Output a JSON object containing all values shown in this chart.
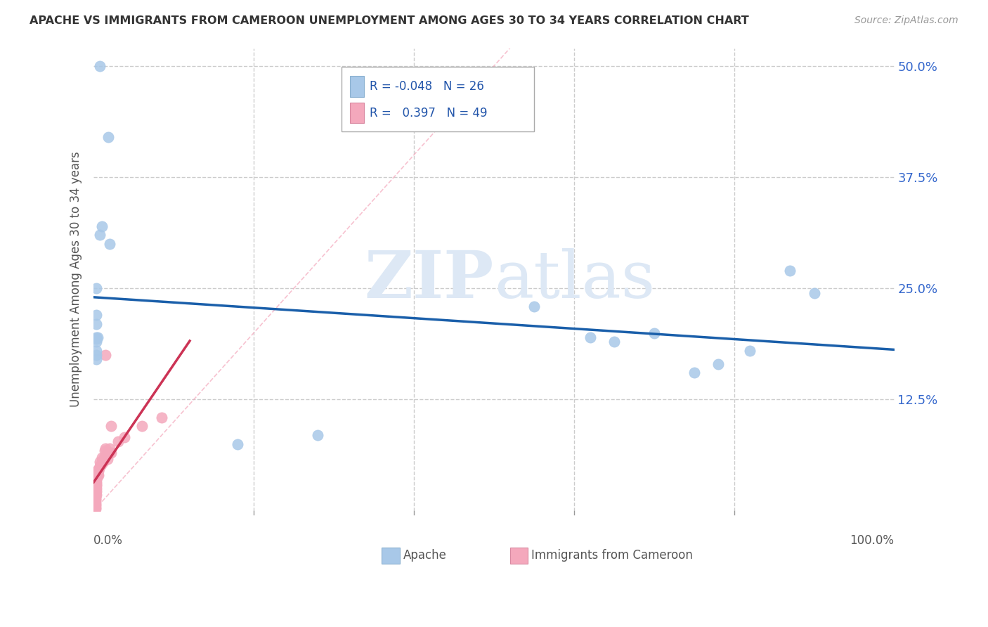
{
  "title": "APACHE VS IMMIGRANTS FROM CAMEROON UNEMPLOYMENT AMONG AGES 30 TO 34 YEARS CORRELATION CHART",
  "source": "Source: ZipAtlas.com",
  "ylabel": "Unemployment Among Ages 30 to 34 years",
  "yticks": [
    0.0,
    0.125,
    0.25,
    0.375,
    0.5
  ],
  "ytick_labels": [
    "",
    "12.5%",
    "25.0%",
    "37.5%",
    "50.0%"
  ],
  "xlim": [
    0.0,
    1.0
  ],
  "ylim": [
    0.0,
    0.52
  ],
  "apache_R": -0.048,
  "apache_N": 26,
  "cameroon_R": 0.397,
  "cameroon_N": 49,
  "apache_color": "#a8c8e8",
  "cameroon_color": "#f4a8bc",
  "apache_line_color": "#1a5faa",
  "cameroon_line_color": "#cc3355",
  "diag_line_color": "#f4a8bc",
  "watermark_color": "#dde8f5",
  "apache_x": [
    0.008,
    0.018,
    0.008,
    0.003,
    0.003,
    0.003,
    0.003,
    0.003,
    0.005,
    0.003,
    0.01,
    0.02,
    0.18,
    0.55,
    0.62,
    0.65,
    0.7,
    0.75,
    0.78,
    0.82,
    0.87,
    0.9,
    0.003,
    0.003,
    0.28,
    0.003
  ],
  "apache_y": [
    0.5,
    0.42,
    0.31,
    0.25,
    0.22,
    0.195,
    0.19,
    0.18,
    0.195,
    0.21,
    0.32,
    0.3,
    0.075,
    0.23,
    0.195,
    0.19,
    0.2,
    0.155,
    0.165,
    0.18,
    0.27,
    0.245,
    0.17,
    0.175,
    0.085,
    0.193
  ],
  "cameroon_x": [
    0.002,
    0.002,
    0.002,
    0.002,
    0.002,
    0.002,
    0.002,
    0.002,
    0.002,
    0.002,
    0.003,
    0.003,
    0.003,
    0.003,
    0.003,
    0.003,
    0.003,
    0.003,
    0.003,
    0.003,
    0.003,
    0.004,
    0.004,
    0.005,
    0.005,
    0.006,
    0.006,
    0.007,
    0.008,
    0.008,
    0.009,
    0.01,
    0.01,
    0.012,
    0.013,
    0.014,
    0.015,
    0.015,
    0.017,
    0.017,
    0.018,
    0.02,
    0.02,
    0.022,
    0.022,
    0.03,
    0.038,
    0.06,
    0.085
  ],
  "cameroon_y": [
    0.002,
    0.004,
    0.006,
    0.008,
    0.01,
    0.012,
    0.014,
    0.016,
    0.018,
    0.02,
    0.018,
    0.022,
    0.025,
    0.028,
    0.03,
    0.032,
    0.035,
    0.038,
    0.04,
    0.042,
    0.045,
    0.038,
    0.042,
    0.04,
    0.045,
    0.04,
    0.045,
    0.048,
    0.05,
    0.055,
    0.052,
    0.055,
    0.06,
    0.055,
    0.06,
    0.068,
    0.07,
    0.175,
    0.058,
    0.065,
    0.065,
    0.065,
    0.07,
    0.065,
    0.095,
    0.078,
    0.083,
    0.095,
    0.105
  ]
}
